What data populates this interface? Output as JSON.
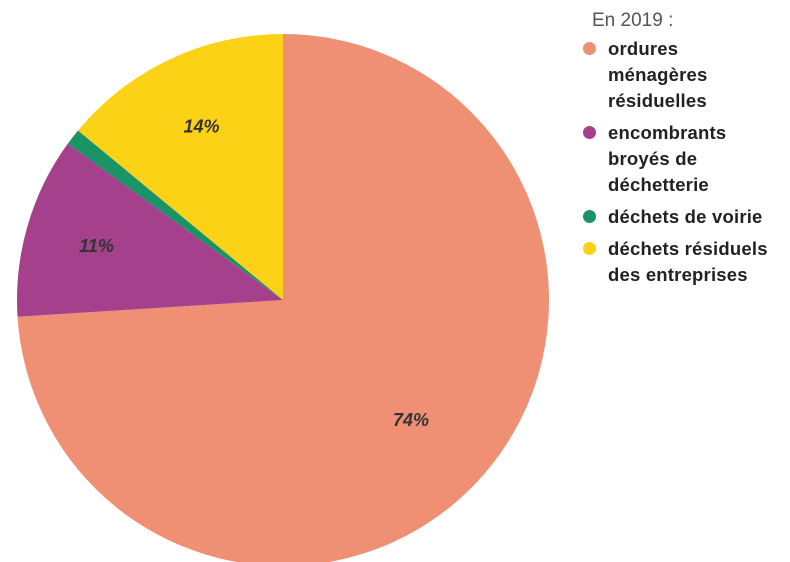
{
  "chart_data": {
    "type": "pie",
    "title": "En  2019 :",
    "slices": [
      {
        "label": "ordures ménagères résiduelles",
        "value": 74,
        "display": "74%",
        "color": "#ef8f73",
        "show_label": true
      },
      {
        "label": "encombrants broyés de déchetterie",
        "value": 11,
        "display": "11%",
        "color": "#a4408c",
        "show_label": true
      },
      {
        "label": "déchets de voirie",
        "value": 1,
        "display": "",
        "color": "#1a9367",
        "show_label": false
      },
      {
        "label": "déchets résiduels des entreprises",
        "value": 14,
        "display": "14%",
        "color": "#fcd217",
        "show_label": true
      }
    ],
    "legend_position": "right"
  },
  "legend": {
    "title": "En  2019 :",
    "items": [
      {
        "text": "ordures ménagères résiduelles",
        "color": "#ef8f73"
      },
      {
        "text": "encombrants broyés de déchetterie",
        "color": "#a4408c"
      },
      {
        "text": "déchets de voirie",
        "color": "#1a9367"
      },
      {
        "text": "déchets résiduels des entreprises",
        "color": "#fcd217"
      }
    ]
  }
}
